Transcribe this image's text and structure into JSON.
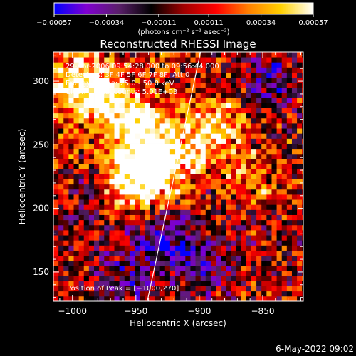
{
  "chart_data": {
    "type": "heatmap",
    "title": "Reconstructed RHESSI Image",
    "xlabel": "Heliocentric X (arcsec)",
    "ylabel": "Heliocentric Y (arcsec)",
    "xlim": [
      -1015,
      -818
    ],
    "ylim": [
      127,
      323
    ],
    "xticks": [
      -1000,
      -950,
      -900,
      -850
    ],
    "xtick_labels": [
      "−1000",
      "−950",
      "−900",
      "−850"
    ],
    "yticks": [
      150,
      200,
      250,
      300
    ],
    "ytick_labels": [
      "150",
      "200",
      "250",
      "300"
    ],
    "colorbar": {
      "range": [
        -0.00057,
        0.00057
      ],
      "ticks": [
        -0.00057,
        -0.00034,
        -0.00011,
        0.00011,
        0.00034,
        0.00057
      ],
      "tick_labels": [
        "−0.00057",
        "−0.00034",
        "−0.00011",
        "0.00011",
        "0.00034",
        "0.00057"
      ],
      "units_label": "(photons cm⁻² s⁻¹ asec⁻²)",
      "colors": [
        "#0000ff",
        "#8000d0",
        "#5a1f6a",
        "#000000",
        "#a00000",
        "#ff0000",
        "#ff8000",
        "#ffd000",
        "#ffffff"
      ]
    },
    "annotations": [
      "29-Apr-2006 09:54:28.000 to 09:56:44.000",
      "Detectors: 3F 4F 5F 6F 7F 8F, Att 0",
      "Energy Range: 25.0 - 50.0 keV",
      "Clean    Total counts: 5.01E+03"
    ],
    "peak_label": "Position of Peak = [−1000,270]",
    "limb_line": {
      "x": [
        -941,
        -899
      ],
      "y": [
        127,
        323
      ]
    },
    "bright_regions": [
      {
        "x": -995,
        "y": 300,
        "level": 0.45
      },
      {
        "x": -975,
        "y": 285,
        "level": 0.42
      },
      {
        "x": -950,
        "y": 265,
        "level": 0.48
      },
      {
        "x": -940,
        "y": 240,
        "level": 0.44
      },
      {
        "x": -955,
        "y": 220,
        "level": 0.5
      },
      {
        "x": -925,
        "y": 230,
        "level": 0.4
      },
      {
        "x": -900,
        "y": 255,
        "level": 0.38
      },
      {
        "x": -880,
        "y": 270,
        "level": 0.3
      },
      {
        "x": -860,
        "y": 225,
        "level": 0.28
      }
    ],
    "dim_regions": [
      {
        "x": -930,
        "y": 175,
        "level": -0.35
      },
      {
        "x": -900,
        "y": 160,
        "level": -0.3
      },
      {
        "x": -845,
        "y": 300,
        "level": -0.32
      },
      {
        "x": -985,
        "y": 215,
        "level": -0.2
      },
      {
        "x": -960,
        "y": 145,
        "level": -0.28
      }
    ]
  },
  "footer": {
    "timestamp": "6-May-2022 09:02"
  }
}
